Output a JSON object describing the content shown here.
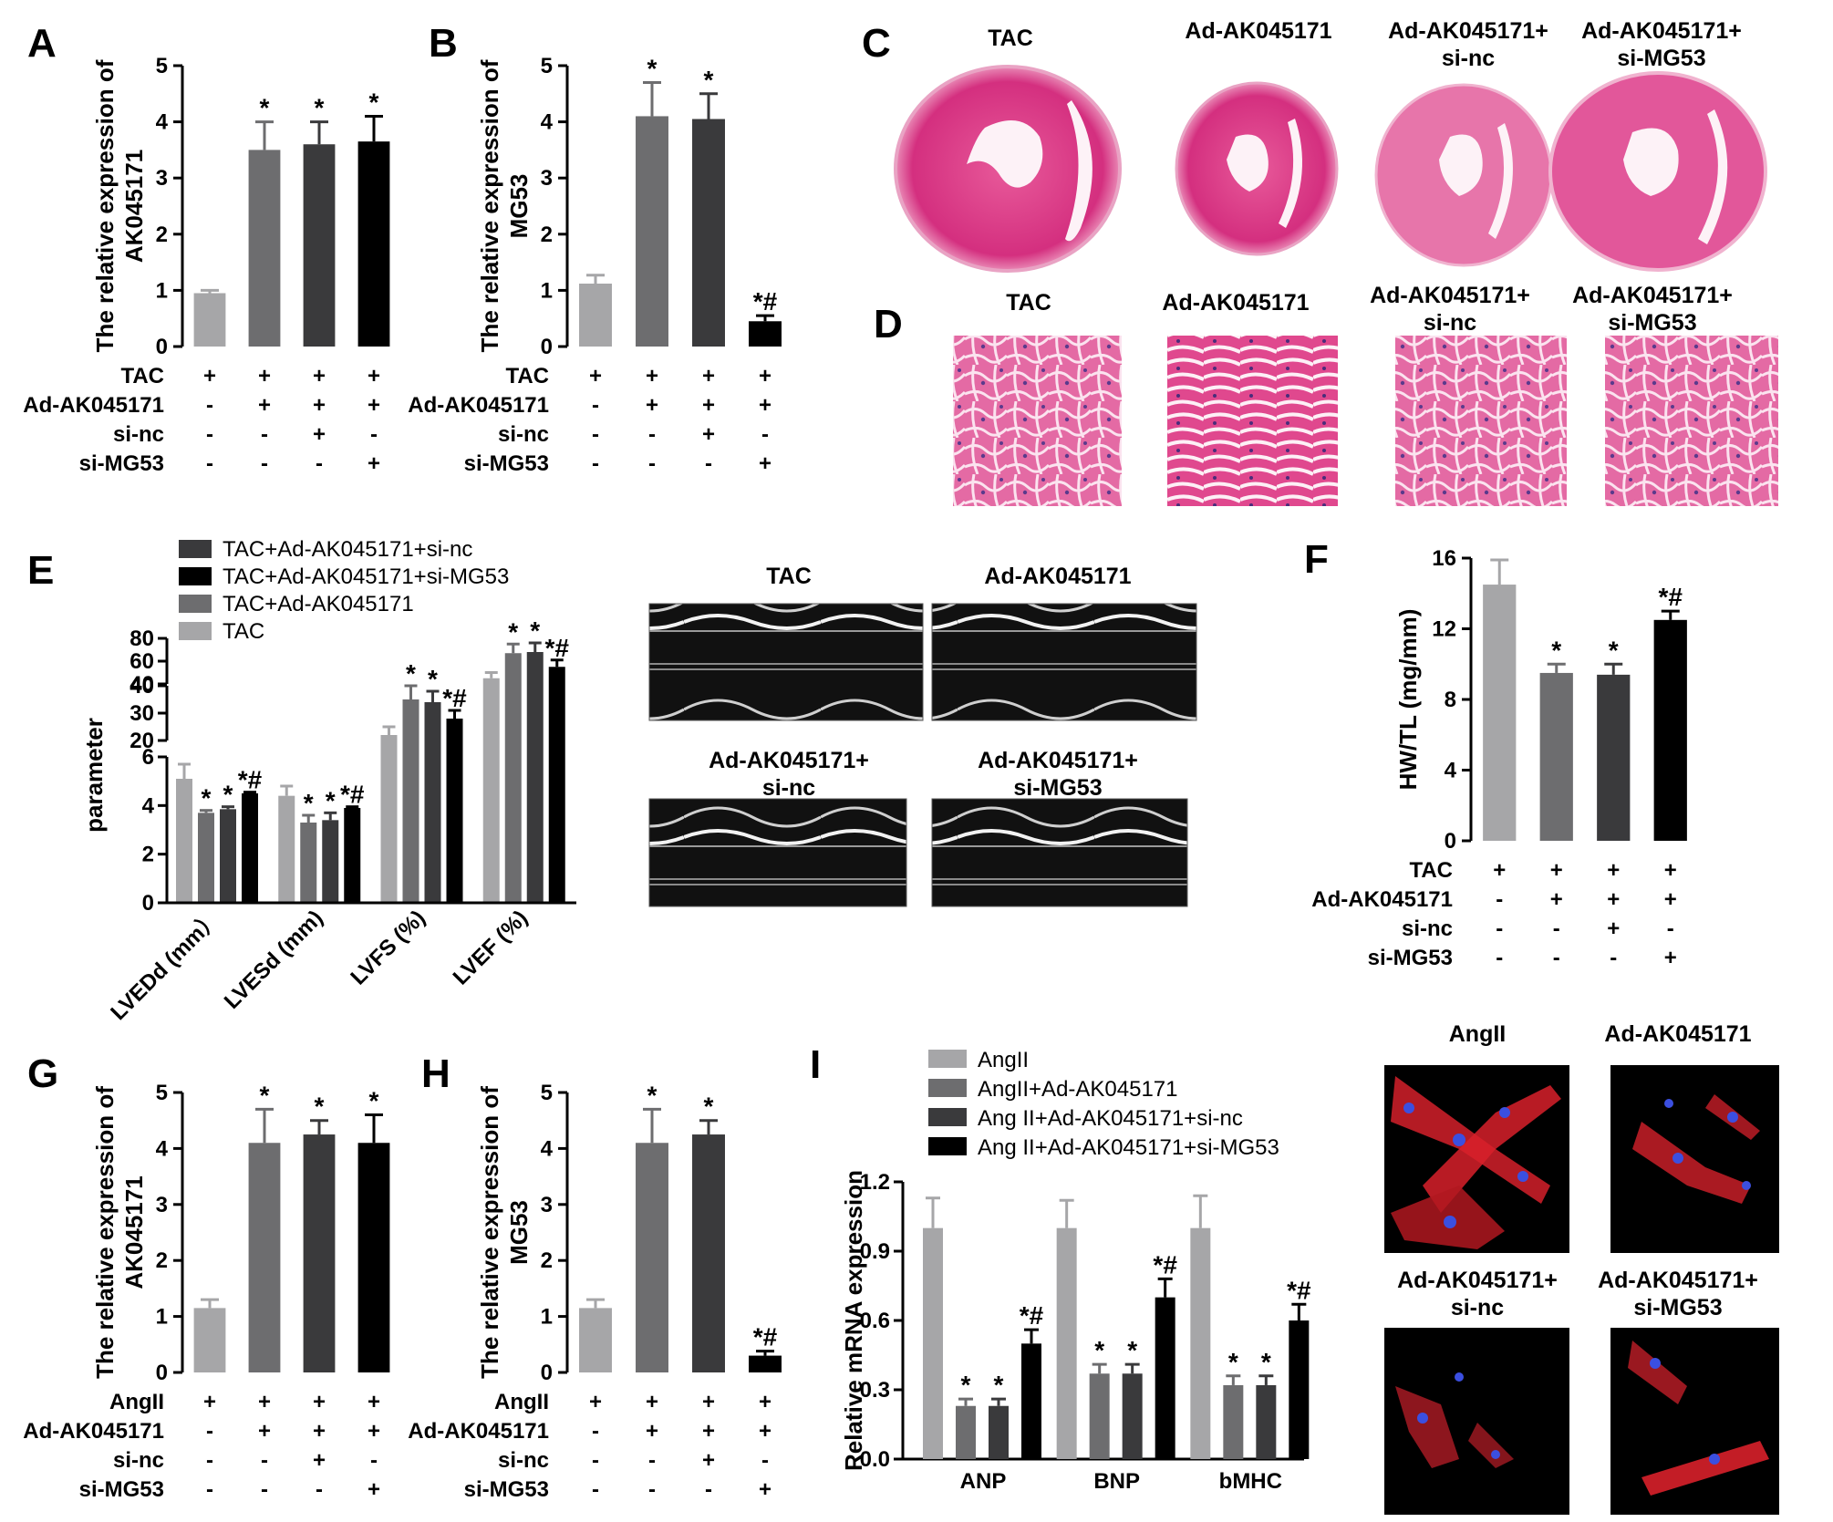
{
  "panel_labels": {
    "A": "A",
    "B": "B",
    "C": "C",
    "D": "D",
    "E": "E",
    "F": "F",
    "G": "G",
    "H": "H",
    "I": "I"
  },
  "conditions_tac": {
    "rows": [
      "TAC",
      "Ad-AK045171",
      "si-nc",
      "si-MG53"
    ],
    "signs": [
      [
        "+",
        "+",
        "+",
        "+"
      ],
      [
        "-",
        "+",
        "+",
        "+"
      ],
      [
        "-",
        "-",
        "+",
        "-"
      ],
      [
        "-",
        "-",
        "-",
        "+"
      ]
    ]
  },
  "conditions_angii": {
    "rows": [
      "AngII",
      "Ad-AK045171",
      "si-nc",
      "si-MG53"
    ],
    "signs": [
      [
        "+",
        "+",
        "+",
        "+"
      ],
      [
        "-",
        "+",
        "+",
        "+"
      ],
      [
        "-",
        "-",
        "+",
        "-"
      ],
      [
        "-",
        "-",
        "-",
        "+"
      ]
    ]
  },
  "group_titles": {
    "tac": "TAC",
    "ad": "Ad-AK045171",
    "adnc": [
      "Ad-AK045171+",
      "si-nc"
    ],
    "admg": [
      "Ad-AK045171+",
      "si-MG53"
    ],
    "angii": "AngII"
  },
  "colors": {
    "bar1": "#a6a6a8",
    "bar2": "#6d6d6f",
    "bar3": "#3a3a3c",
    "bar4": "#000000",
    "he_light": "#f2a6c9",
    "he_dark": "#d62d7e",
    "if_red": "#d8202a",
    "if_blue": "#3b4fe0"
  },
  "chart_data": [
    {
      "panel": "A",
      "type": "bar",
      "ylabel": [
        "The relative expression of",
        "AK045171"
      ],
      "ylim": [
        0,
        5
      ],
      "yticks": [
        "0",
        "1",
        "2",
        "3",
        "4",
        "5"
      ],
      "values": [
        0.95,
        3.5,
        3.6,
        3.65
      ],
      "errors": [
        0.05,
        0.5,
        0.4,
        0.45
      ],
      "marks": [
        "",
        "*",
        "*",
        "*"
      ]
    },
    {
      "panel": "B",
      "type": "bar",
      "ylabel": [
        "The relative expression of",
        "MG53"
      ],
      "ylim": [
        0,
        5
      ],
      "yticks": [
        "0",
        "1",
        "2",
        "3",
        "4",
        "5"
      ],
      "values": [
        1.12,
        4.1,
        4.05,
        0.45
      ],
      "errors": [
        0.15,
        0.6,
        0.45,
        0.1
      ],
      "marks": [
        "",
        "*",
        "*",
        "*#"
      ]
    },
    {
      "panel": "E",
      "type": "bar",
      "ylabel": "parameter",
      "categories": [
        "LVEDd (mm）",
        "LVESd (mm)",
        "LVFS (%)",
        "LVEF (%)"
      ],
      "legend": [
        "TAC+Ad-AK045171+si-nc",
        "TAC+Ad-AK045171+si-MG53",
        "TAC+Ad-AK045171",
        "TAC"
      ],
      "axis_segments": [
        {
          "ylim": [
            0,
            6
          ],
          "ticks": [
            "0",
            "2",
            "4",
            "6"
          ]
        },
        {
          "ylim": [
            20,
            40
          ],
          "ticks": [
            "20",
            "30",
            "40"
          ]
        },
        {
          "ylim": [
            40,
            80
          ],
          "ticks": [
            "40",
            "60",
            "80"
          ]
        }
      ],
      "series": [
        {
          "name": "TAC",
          "values": [
            5.1,
            4.4,
            22,
            45
          ],
          "errors": [
            0.6,
            0.4,
            3,
            5
          ]
        },
        {
          "name": "TAC+Ad-AK045171",
          "values": [
            3.7,
            3.3,
            35,
            67
          ],
          "errors": [
            0.1,
            0.3,
            5,
            8
          ]
        },
        {
          "name": "TAC+Ad-AK045171+si-nc",
          "values": [
            3.85,
            3.4,
            34,
            68
          ],
          "errors": [
            0.1,
            0.3,
            4,
            8
          ]
        },
        {
          "name": "TAC+Ad-AK045171+si-MG53",
          "values": [
            4.5,
            3.9,
            28,
            55
          ],
          "errors": [
            0.05,
            0.05,
            3,
            6
          ]
        }
      ],
      "marks": [
        [
          "",
          "*",
          "*",
          "*#"
        ],
        [
          "",
          "*",
          "*",
          "*#"
        ],
        [
          "",
          "*",
          "*",
          "*#"
        ],
        [
          "",
          "*",
          "*",
          "*#"
        ]
      ]
    },
    {
      "panel": "F",
      "type": "bar",
      "ylabel": "HW/TL (mg/mm)",
      "ylim": [
        0,
        16
      ],
      "yticks": [
        "0",
        "4",
        "8",
        "12",
        "16"
      ],
      "values": [
        14.5,
        9.5,
        9.4,
        12.5
      ],
      "errors": [
        1.4,
        0.5,
        0.6,
        0.5
      ],
      "marks": [
        "",
        "*",
        "*",
        "*#"
      ]
    },
    {
      "panel": "G",
      "type": "bar",
      "ylabel": [
        "The relative expression of",
        "AK045171"
      ],
      "ylim": [
        0,
        5
      ],
      "yticks": [
        "0",
        "1",
        "2",
        "3",
        "4",
        "5"
      ],
      "values": [
        1.15,
        4.1,
        4.25,
        4.1
      ],
      "errors": [
        0.15,
        0.6,
        0.25,
        0.5
      ],
      "marks": [
        "",
        "*",
        "*",
        "*"
      ]
    },
    {
      "panel": "H",
      "type": "bar",
      "ylabel": [
        "The relative expression of",
        "MG53"
      ],
      "ylim": [
        0,
        5
      ],
      "yticks": [
        "0",
        "1",
        "2",
        "3",
        "4",
        "5"
      ],
      "values": [
        1.15,
        4.1,
        4.25,
        0.3
      ],
      "errors": [
        0.15,
        0.6,
        0.25,
        0.08
      ],
      "marks": [
        "",
        "*",
        "*",
        "*#"
      ]
    },
    {
      "panel": "I",
      "type": "bar",
      "ylabel": "Relative mRNA expression",
      "categories": [
        "ANP",
        "BNP",
        "bMHC"
      ],
      "ylim": [
        0,
        1.2
      ],
      "yticks": [
        "0.0",
        "0.3",
        "0.6",
        "0.9",
        "1.2"
      ],
      "legend": [
        "AngII",
        "AngII+Ad-AK045171",
        "Ang II+Ad-AK045171+si-nc",
        "Ang II+Ad-AK045171+si-MG53"
      ],
      "series": [
        {
          "name": "AngII",
          "values": [
            1.0,
            1.0,
            1.0
          ],
          "errors": [
            0.13,
            0.12,
            0.14
          ]
        },
        {
          "name": "AngII+Ad-AK045171",
          "values": [
            0.23,
            0.37,
            0.32
          ],
          "errors": [
            0.03,
            0.04,
            0.04
          ]
        },
        {
          "name": "Ang II+Ad-AK045171+si-nc",
          "values": [
            0.23,
            0.37,
            0.32
          ],
          "errors": [
            0.03,
            0.04,
            0.04
          ]
        },
        {
          "name": "Ang II+Ad-AK045171+si-MG53",
          "values": [
            0.5,
            0.7,
            0.6
          ],
          "errors": [
            0.06,
            0.08,
            0.07
          ]
        }
      ],
      "marks": [
        [
          "",
          "*",
          "*",
          "*#"
        ],
        [
          "",
          "*",
          "*",
          "*#"
        ],
        [
          "",
          "*",
          "*",
          "*#"
        ]
      ]
    }
  ]
}
